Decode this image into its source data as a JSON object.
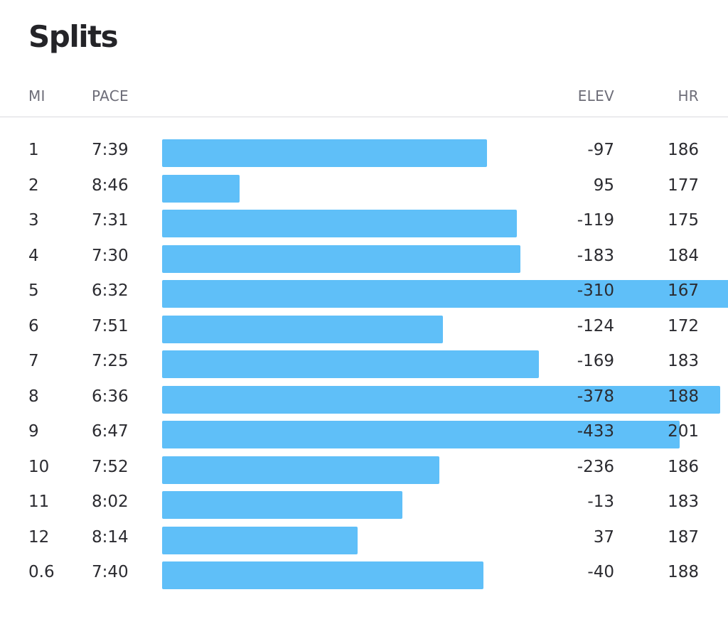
{
  "title": "Splits",
  "columns": {
    "mi": "MI",
    "pace": "PACE",
    "elev": "ELEV",
    "hr": "HR"
  },
  "colors": {
    "bar": "#5fbff8"
  },
  "chart_data": {
    "type": "bar",
    "orientation": "horizontal",
    "categories": [
      "1",
      "2",
      "3",
      "4",
      "5",
      "6",
      "7",
      "8",
      "9",
      "10",
      "11",
      "12",
      "0.6"
    ],
    "pace": [
      "7:39",
      "8:46",
      "7:31",
      "7:30",
      "6:32",
      "7:51",
      "7:25",
      "6:36",
      "6:47",
      "7:52",
      "8:02",
      "8:14",
      "7:40"
    ],
    "pace_seconds": [
      459,
      526,
      451,
      450,
      392,
      471,
      445,
      396,
      407,
      472,
      482,
      494,
      460
    ],
    "elev": [
      "-97",
      "95",
      "-119",
      "-183",
      "-310",
      "-124",
      "-169",
      "-378",
      "-433",
      "-236",
      "-13",
      "37",
      "-40"
    ],
    "hr": [
      "186",
      "177",
      "175",
      "184",
      "167",
      "172",
      "183",
      "188",
      "201",
      "186",
      "183",
      "187",
      "188"
    ]
  }
}
